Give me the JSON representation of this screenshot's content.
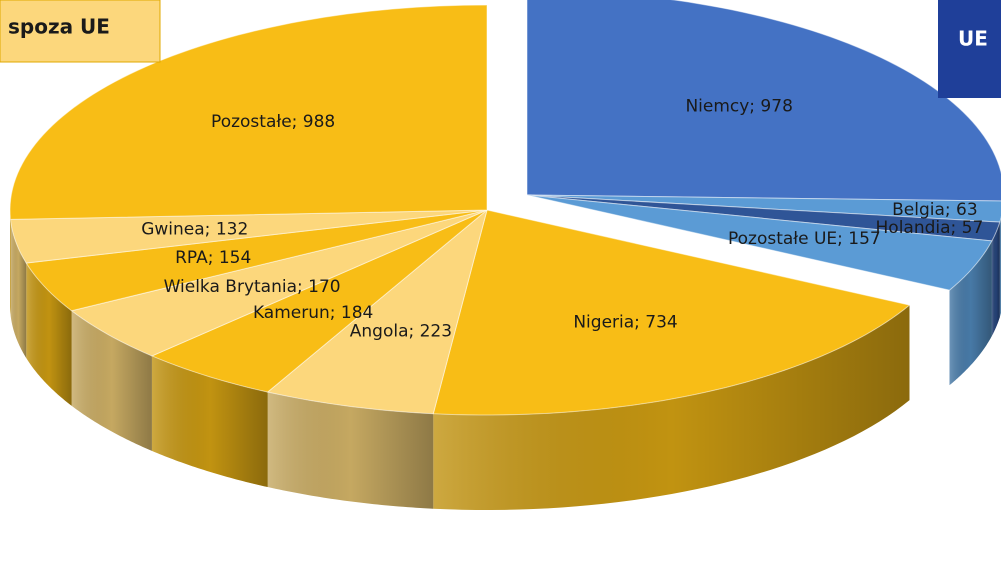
{
  "chart_data": {
    "type": "pie3d",
    "title": "spoza UE",
    "logo_text": "UE",
    "categories": [
      "Niemcy",
      "Belgia",
      "Holandia",
      "Pozostałe UE",
      "Nigeria",
      "Angola",
      "Kamerun",
      "Wielka Brytania",
      "RPA",
      "Gwinea",
      "Pozostałe"
    ],
    "values": [
      978,
      63,
      57,
      157,
      734,
      223,
      184,
      170,
      154,
      132,
      988
    ],
    "value_labels": [
      "Niemcy; 978",
      "Belgia; 63",
      "Holandia; 57",
      "Pozostałe UE; 157",
      "Nigeria; 734",
      "Angola; 223",
      "Kamerun; 184",
      "Wielka Brytania; 170",
      "RPA; 154",
      "Gwinea; 132",
      "Pozostałe; 988"
    ],
    "colors": [
      "#4472c4",
      "#5b9bd5",
      "#2f5597",
      "#5b9bd5",
      "#f8bd16",
      "#fcd77c",
      "#f8bd16",
      "#fcd77c",
      "#f8bd16",
      "#fcd77c",
      "#f8bd16"
    ],
    "exploded": [
      true,
      true,
      true,
      true,
      false,
      false,
      false,
      false,
      false,
      false,
      false
    ]
  }
}
